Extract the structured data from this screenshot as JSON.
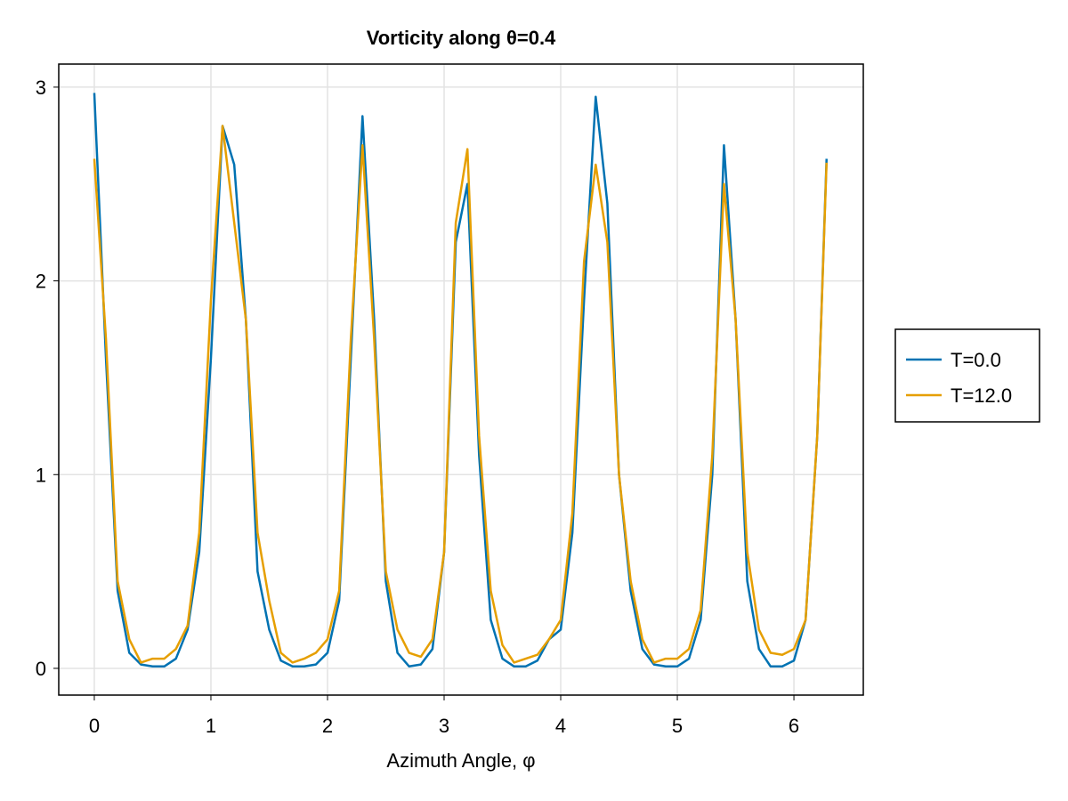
{
  "chart_data": {
    "type": "line",
    "title": "Vorticity along θ=0.4",
    "x_label": "Azimuth Angle, φ",
    "x": [
      0,
      0.1,
      0.2,
      0.3,
      0.4,
      0.5,
      0.6,
      0.7,
      0.8,
      0.9,
      1.0,
      1.1,
      1.2,
      1.3,
      1.4,
      1.5,
      1.6,
      1.7,
      1.8,
      1.9,
      2.0,
      2.1,
      2.2,
      2.3,
      2.4,
      2.5,
      2.6,
      2.7,
      2.8,
      2.9,
      3.0,
      3.1,
      3.2,
      3.3,
      3.4,
      3.5,
      3.6,
      3.7,
      3.8,
      3.9,
      4.0,
      4.1,
      4.2,
      4.3,
      4.4,
      4.5,
      4.6,
      4.7,
      4.8,
      4.9,
      5.0,
      5.1,
      5.2,
      5.3,
      5.4,
      5.5,
      5.6,
      5.7,
      5.8,
      5.9,
      6.0,
      6.1,
      6.2,
      6.28
    ],
    "series": [
      {
        "name": "T=0.0",
        "color": "#0072b2",
        "values": [
          2.97,
          1.6,
          0.4,
          0.08,
          0.02,
          0.01,
          0.01,
          0.05,
          0.2,
          0.6,
          1.6,
          2.8,
          2.6,
          1.8,
          0.5,
          0.2,
          0.04,
          0.01,
          0.01,
          0.02,
          0.08,
          0.35,
          1.6,
          2.85,
          1.8,
          0.45,
          0.08,
          0.01,
          0.02,
          0.1,
          0.6,
          2.2,
          2.5,
          1.1,
          0.25,
          0.05,
          0.01,
          0.01,
          0.04,
          0.15,
          0.2,
          0.7,
          1.9,
          2.95,
          2.4,
          1.0,
          0.4,
          0.1,
          0.02,
          0.01,
          0.01,
          0.05,
          0.25,
          1.0,
          2.7,
          1.8,
          0.45,
          0.1,
          0.01,
          0.01,
          0.04,
          0.25,
          1.2,
          2.63
        ]
      },
      {
        "name": "T=12.0",
        "color": "#e69f00",
        "values": [
          2.63,
          1.7,
          0.45,
          0.15,
          0.03,
          0.05,
          0.05,
          0.1,
          0.22,
          0.7,
          1.9,
          2.8,
          2.3,
          1.8,
          0.7,
          0.35,
          0.08,
          0.03,
          0.05,
          0.08,
          0.15,
          0.4,
          1.7,
          2.7,
          1.7,
          0.5,
          0.2,
          0.08,
          0.06,
          0.15,
          0.6,
          2.3,
          2.68,
          1.2,
          0.4,
          0.12,
          0.03,
          0.05,
          0.07,
          0.15,
          0.25,
          0.8,
          2.1,
          2.6,
          2.2,
          1.0,
          0.45,
          0.15,
          0.03,
          0.05,
          0.05,
          0.1,
          0.3,
          1.1,
          2.5,
          1.8,
          0.6,
          0.2,
          0.08,
          0.07,
          0.1,
          0.25,
          1.2,
          2.61
        ]
      }
    ],
    "xlim": [
      -0.305,
      6.595
    ],
    "ylim": [
      -0.138,
      3.119
    ],
    "xticks": [
      0,
      1,
      2,
      3,
      4,
      5,
      6
    ],
    "yticks": [
      0,
      1,
      2,
      3
    ],
    "grid": true,
    "legend": "right"
  }
}
